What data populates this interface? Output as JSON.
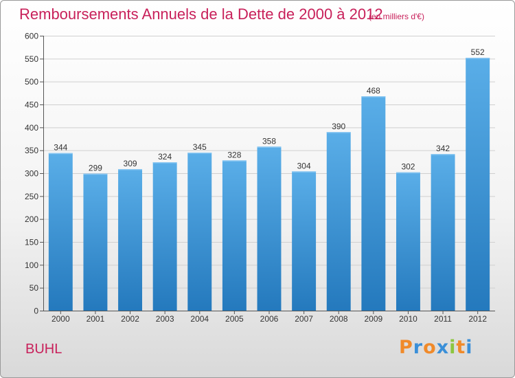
{
  "title": "Remboursements Annuels de la Dette de 2000 à 2012",
  "subtitle": "(en milliers d'€)",
  "commune": "BUHL",
  "logo": {
    "letters": [
      "P",
      "r",
      "o",
      "x",
      "i",
      "t",
      "i"
    ],
    "colors": [
      "#f08a2a",
      "#3a8fd8",
      "#f08a2a",
      "#3a8fd8",
      "#8cc63f",
      "#f08a2a",
      "#3a8fd8"
    ]
  },
  "colors": {
    "bar_top": "#5aaee8",
    "bar_bottom": "#2479bd",
    "text": "#c8205a"
  },
  "chart_data": {
    "type": "bar",
    "categories": [
      "2000",
      "2001",
      "2002",
      "2003",
      "2004",
      "2005",
      "2006",
      "2007",
      "2008",
      "2009",
      "2010",
      "2011",
      "2012"
    ],
    "values": [
      344,
      299,
      309,
      324,
      345,
      328,
      358,
      304,
      390,
      468,
      302,
      342,
      552
    ],
    "ylim": [
      0,
      600
    ],
    "yticks": [
      0,
      50,
      100,
      150,
      200,
      250,
      300,
      350,
      400,
      450,
      500,
      550,
      600
    ],
    "grid": true,
    "data_labels": true
  }
}
